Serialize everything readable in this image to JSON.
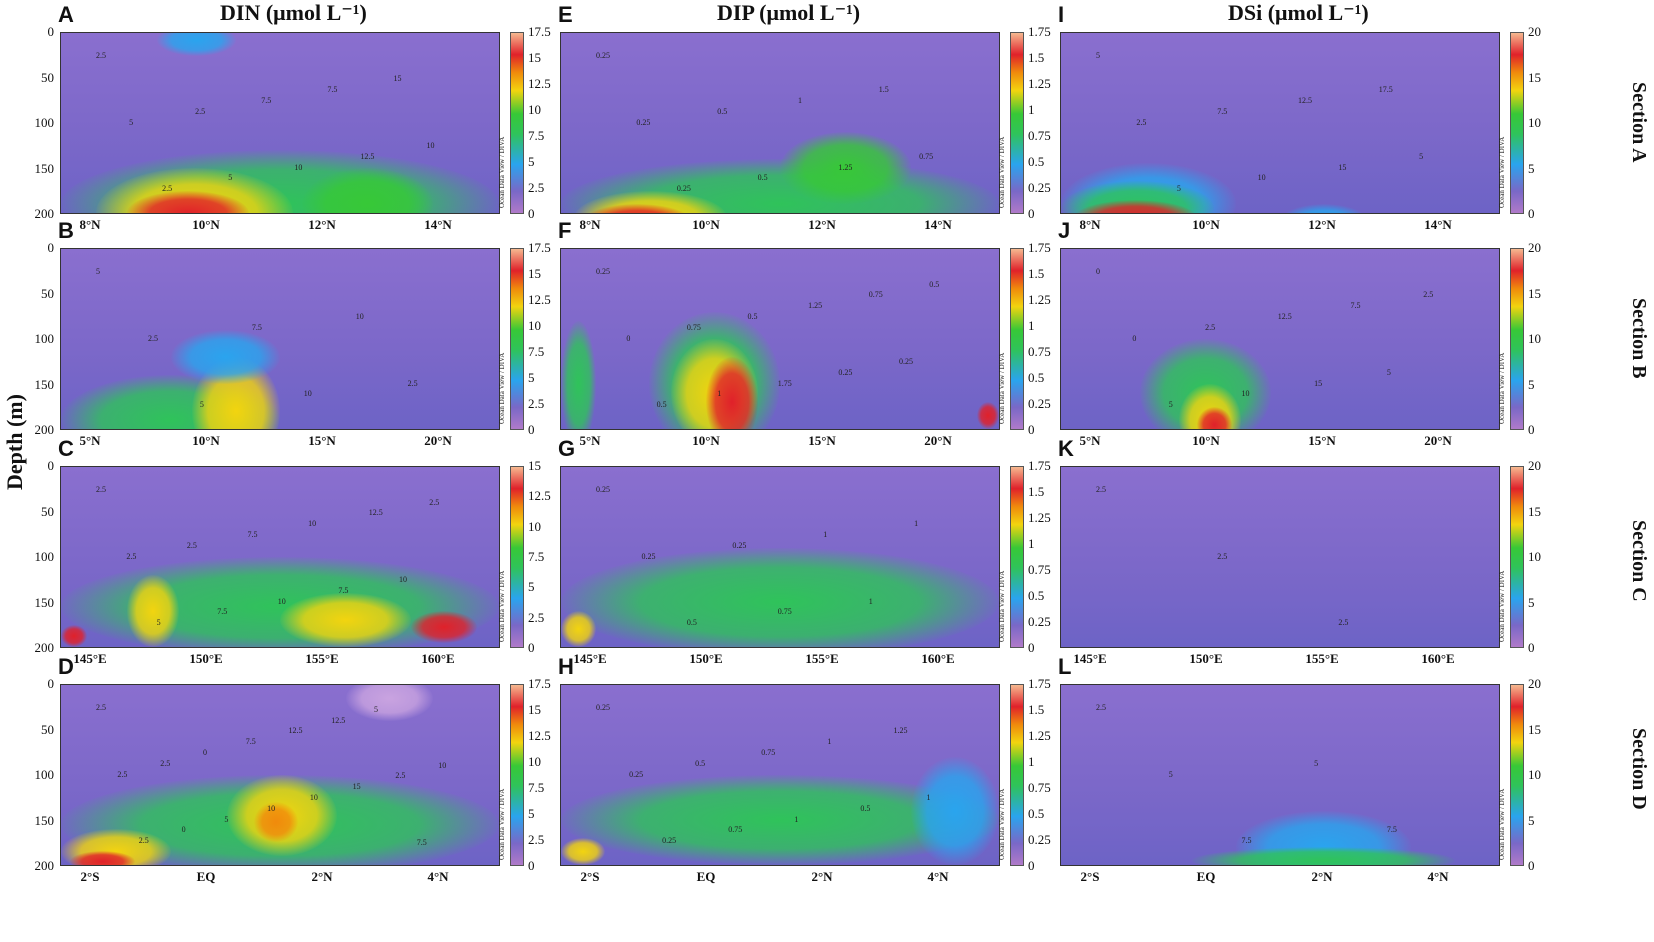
{
  "column_titles": [
    "DIN (μmol L⁻¹)",
    "DIP (μmol L⁻¹)",
    "DSi (μmol L⁻¹)"
  ],
  "y_axis_label": "Depth (m)",
  "section_labels": [
    "Section A",
    "Section B",
    "Section C",
    "Section D"
  ],
  "depth_ticks": [
    "0",
    "50",
    "100",
    "150",
    "200"
  ],
  "colorbar_note": "Ocean Data View / DIVA",
  "colorbar_ticks": {
    "din_a": [
      "0",
      "2.5",
      "5",
      "7.5",
      "10",
      "12.5",
      "15",
      "17.5"
    ],
    "din_c": [
      "0",
      "2.5",
      "5",
      "7.5",
      "10",
      "12.5",
      "15"
    ],
    "dip": [
      "0",
      "0.25",
      "0.5",
      "0.75",
      "1",
      "1.25",
      "1.5",
      "1.75"
    ],
    "dsi": [
      "0",
      "5",
      "10",
      "15",
      "20"
    ]
  },
  "x_ticks": {
    "A": [
      "8°N",
      "10°N",
      "12°N",
      "14°N"
    ],
    "B": [
      "5°N",
      "10°N",
      "15°N",
      "20°N"
    ],
    "C": [
      "145°E",
      "150°E",
      "155°E",
      "160°E"
    ],
    "D": [
      "2°S",
      "EQ",
      "2°N",
      "4°N"
    ]
  },
  "panels": [
    {
      "letter": "A",
      "row": 0,
      "col": 0,
      "cb": "din_a",
      "contours": [
        "2.5",
        "5",
        "2.5",
        "2.5",
        "5",
        "7.5",
        "10",
        "7.5",
        "12.5",
        "15",
        "10"
      ]
    },
    {
      "letter": "E",
      "row": 0,
      "col": 1,
      "cb": "dip",
      "contours": [
        "0.25",
        "0.25",
        "0.25",
        "0.5",
        "0.5",
        "1",
        "1.25",
        "1.5",
        "0.75"
      ]
    },
    {
      "letter": "I",
      "row": 0,
      "col": 2,
      "cb": "dsi",
      "contours": [
        "5",
        "2.5",
        "5",
        "7.5",
        "10",
        "12.5",
        "15",
        "17.5",
        "5"
      ]
    },
    {
      "letter": "B",
      "row": 1,
      "col": 0,
      "cb": "din_a",
      "contours": [
        "5",
        "2.5",
        "5",
        "7.5",
        "10",
        "10",
        "2.5"
      ]
    },
    {
      "letter": "F",
      "row": 1,
      "col": 1,
      "cb": "dip",
      "contours": [
        "0.25",
        "0",
        "0.5",
        "0.75",
        "1",
        "0.5",
        "1.75",
        "1.25",
        "0.25",
        "0.75",
        "0.25",
        "0.5"
      ]
    },
    {
      "letter": "J",
      "row": 1,
      "col": 2,
      "cb": "dsi",
      "contours": [
        "0",
        "0",
        "5",
        "2.5",
        "10",
        "12.5",
        "15",
        "7.5",
        "5",
        "2.5"
      ]
    },
    {
      "letter": "C",
      "row": 2,
      "col": 0,
      "cb": "din_c",
      "contours": [
        "2.5",
        "2.5",
        "5",
        "2.5",
        "7.5",
        "7.5",
        "10",
        "10",
        "7.5",
        "12.5",
        "10",
        "2.5"
      ]
    },
    {
      "letter": "G",
      "row": 2,
      "col": 1,
      "cb": "dip",
      "contours": [
        "0.25",
        "0.25",
        "0.5",
        "0.25",
        "0.75",
        "1",
        "1",
        "1"
      ]
    },
    {
      "letter": "K",
      "row": 2,
      "col": 2,
      "cb": "dsi",
      "contours": [
        "2.5",
        "2.5",
        "2.5"
      ]
    },
    {
      "letter": "D",
      "row": 3,
      "col": 0,
      "cb": "din_a",
      "contours": [
        "2.5",
        "2.5",
        "2.5",
        "2.5",
        "0",
        "0",
        "5",
        "7.5",
        "10",
        "12.5",
        "10",
        "12.5",
        "15",
        "5",
        "2.5",
        "7.5",
        "10"
      ]
    },
    {
      "letter": "H",
      "row": 3,
      "col": 1,
      "cb": "dip",
      "contours": [
        "0.25",
        "0.25",
        "0.25",
        "0.5",
        "0.75",
        "0.75",
        "1",
        "1",
        "0.5",
        "1.25",
        "1"
      ]
    },
    {
      "letter": "L",
      "row": 3,
      "col": 2,
      "cb": "dsi",
      "contours": [
        "2.5",
        "5",
        "7.5",
        "5",
        "7.5"
      ]
    }
  ],
  "chart_data": [
    {
      "type": "heatmap",
      "title": "DIN (μmol L⁻¹)",
      "panel": "A",
      "section": "Section A",
      "ylabel": "Depth (m)",
      "ylim": [
        200,
        0
      ],
      "x_ticks": [
        "8°N",
        "10°N",
        "12°N",
        "14°N"
      ],
      "colorbar_range": [
        0,
        17.5
      ],
      "description_values": {
        "surface": 2.5,
        "max_near": "9°N, 200 m",
        "max": 15
      }
    },
    {
      "type": "heatmap",
      "title": "DIP (μmol L⁻¹)",
      "panel": "E",
      "section": "Section A",
      "ylim": [
        200,
        0
      ],
      "x_ticks": [
        "8°N",
        "10°N",
        "12°N",
        "14°N"
      ],
      "colorbar_range": [
        0,
        1.75
      ]
    },
    {
      "type": "heatmap",
      "title": "DSi (μmol L⁻¹)",
      "panel": "I",
      "section": "Section A",
      "ylim": [
        200,
        0
      ],
      "x_ticks": [
        "8°N",
        "10°N",
        "12°N",
        "14°N"
      ],
      "colorbar_range": [
        0,
        20
      ]
    },
    {
      "type": "heatmap",
      "panel": "B",
      "section": "Section B",
      "ylim": [
        200,
        0
      ],
      "x_ticks": [
        "5°N",
        "10°N",
        "15°N",
        "20°N"
      ],
      "colorbar_range": [
        0,
        17.5
      ]
    },
    {
      "type": "heatmap",
      "panel": "F",
      "section": "Section B",
      "ylim": [
        200,
        0
      ],
      "x_ticks": [
        "5°N",
        "10°N",
        "15°N",
        "20°N"
      ],
      "colorbar_range": [
        0,
        1.75
      ]
    },
    {
      "type": "heatmap",
      "panel": "J",
      "section": "Section B",
      "ylim": [
        200,
        0
      ],
      "x_ticks": [
        "5°N",
        "10°N",
        "15°N",
        "20°N"
      ],
      "colorbar_range": [
        0,
        20
      ]
    },
    {
      "type": "heatmap",
      "panel": "C",
      "section": "Section C",
      "ylim": [
        200,
        0
      ],
      "x_ticks": [
        "145°E",
        "150°E",
        "155°E",
        "160°E"
      ],
      "colorbar_range": [
        0,
        15
      ]
    },
    {
      "type": "heatmap",
      "panel": "G",
      "section": "Section C",
      "ylim": [
        200,
        0
      ],
      "x_ticks": [
        "145°E",
        "150°E",
        "155°E",
        "160°E"
      ],
      "colorbar_range": [
        0,
        1.75
      ]
    },
    {
      "type": "heatmap",
      "panel": "K",
      "section": "Section C",
      "ylim": [
        200,
        0
      ],
      "x_ticks": [
        "145°E",
        "150°E",
        "155°E",
        "160°E"
      ],
      "colorbar_range": [
        0,
        20
      ]
    },
    {
      "type": "heatmap",
      "panel": "D",
      "section": "Section D",
      "ylim": [
        200,
        0
      ],
      "x_ticks": [
        "2°S",
        "EQ",
        "2°N",
        "4°N"
      ],
      "colorbar_range": [
        0,
        17.5
      ]
    },
    {
      "type": "heatmap",
      "panel": "H",
      "section": "Section D",
      "ylim": [
        200,
        0
      ],
      "x_ticks": [
        "2°S",
        "EQ",
        "2°N",
        "4°N"
      ],
      "colorbar_range": [
        0,
        1.75
      ]
    },
    {
      "type": "heatmap",
      "panel": "L",
      "section": "Section D",
      "ylim": [
        200,
        0
      ],
      "x_ticks": [
        "2°S",
        "EQ",
        "2°N",
        "4°N"
      ],
      "colorbar_range": [
        0,
        20
      ]
    }
  ]
}
